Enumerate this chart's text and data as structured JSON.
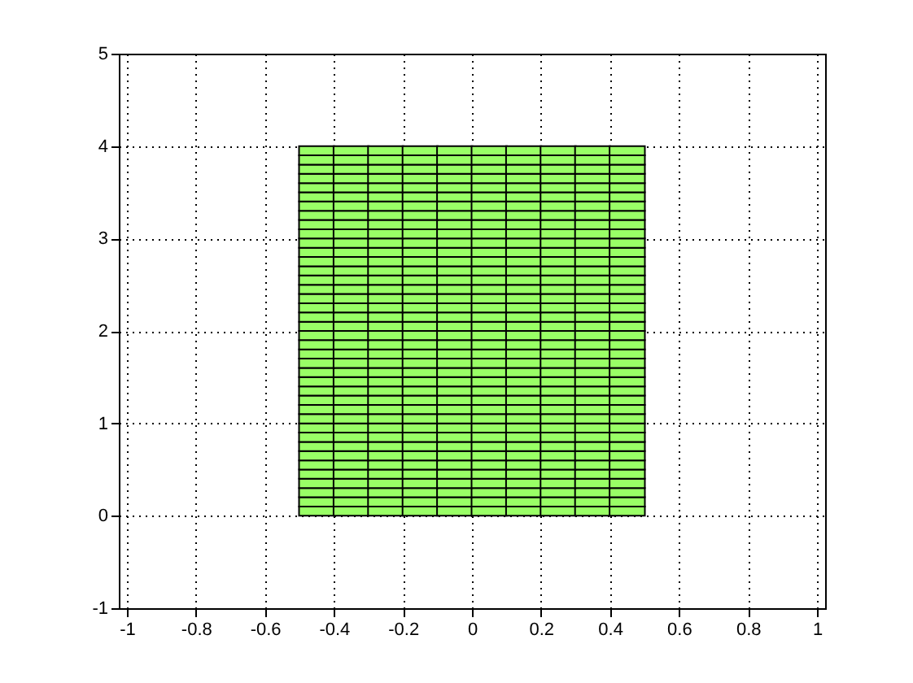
{
  "chart_data": {
    "type": "bar",
    "stacked": true,
    "x": [
      -0.45,
      -0.35,
      -0.25,
      -0.15,
      -0.05,
      0.05,
      0.15,
      0.25,
      0.35,
      0.45
    ],
    "xlim": [
      -1,
      1
    ],
    "xticks": [
      -1,
      -0.8,
      -0.6,
      -0.4,
      -0.2,
      0,
      0.2,
      0.4,
      0.6,
      0.8,
      1
    ],
    "ylim": [
      -1,
      5
    ],
    "yticks": [
      -1,
      0,
      1,
      2,
      3,
      4,
      5
    ],
    "grid": true,
    "series": [
      {
        "color": "#99ff66",
        "values": [
          0.1,
          0.1,
          0.1,
          0.1,
          0.1,
          0.1,
          0.1,
          0.1,
          0.1,
          0.1
        ]
      },
      {
        "color": "#99ff66",
        "values": [
          0.1,
          0.1,
          0.1,
          0.1,
          0.1,
          0.1,
          0.1,
          0.1,
          0.1,
          0.1
        ]
      },
      {
        "color": "#99ff66",
        "values": [
          0.1,
          0.1,
          0.1,
          0.1,
          0.1,
          0.1,
          0.1,
          0.1,
          0.1,
          0.1
        ]
      },
      {
        "color": "#99ff66",
        "values": [
          0.1,
          0.1,
          0.1,
          0.1,
          0.1,
          0.1,
          0.1,
          0.1,
          0.1,
          0.1
        ]
      },
      {
        "color": "#99ff66",
        "values": [
          0.1,
          0.1,
          0.1,
          0.1,
          0.1,
          0.1,
          0.1,
          0.1,
          0.1,
          0.1
        ]
      },
      {
        "color": "#99ff66",
        "values": [
          0.1,
          0.1,
          0.1,
          0.1,
          0.1,
          0.1,
          0.1,
          0.1,
          0.1,
          0.1
        ]
      },
      {
        "color": "#99ff66",
        "values": [
          0.1,
          0.1,
          0.1,
          0.1,
          0.1,
          0.1,
          0.1,
          0.1,
          0.1,
          0.1
        ]
      },
      {
        "color": "#99ff66",
        "values": [
          0.1,
          0.1,
          0.1,
          0.1,
          0.1,
          0.1,
          0.1,
          0.1,
          0.1,
          0.1
        ]
      },
      {
        "color": "#99ff66",
        "values": [
          0.1,
          0.1,
          0.1,
          0.1,
          0.1,
          0.1,
          0.1,
          0.1,
          0.1,
          0.1
        ]
      },
      {
        "color": "#99ff66",
        "values": [
          0.1,
          0.1,
          0.1,
          0.1,
          0.1,
          0.1,
          0.1,
          0.1,
          0.1,
          0.1
        ]
      },
      {
        "color": "#99ff66",
        "values": [
          0.1,
          0.1,
          0.1,
          0.1,
          0.1,
          0.1,
          0.1,
          0.1,
          0.1,
          0.1
        ]
      },
      {
        "color": "#99ff66",
        "values": [
          0.1,
          0.1,
          0.1,
          0.1,
          0.1,
          0.1,
          0.1,
          0.1,
          0.1,
          0.1
        ]
      },
      {
        "color": "#99ff66",
        "values": [
          0.1,
          0.1,
          0.1,
          0.1,
          0.1,
          0.1,
          0.1,
          0.1,
          0.1,
          0.1
        ]
      },
      {
        "color": "#99ff66",
        "values": [
          0.1,
          0.1,
          0.1,
          0.1,
          0.1,
          0.1,
          0.1,
          0.1,
          0.1,
          0.1
        ]
      },
      {
        "color": "#99ff66",
        "values": [
          0.1,
          0.1,
          0.1,
          0.1,
          0.1,
          0.1,
          0.1,
          0.1,
          0.1,
          0.1
        ]
      },
      {
        "color": "#99ff66",
        "values": [
          0.1,
          0.1,
          0.1,
          0.1,
          0.1,
          0.1,
          0.1,
          0.1,
          0.1,
          0.1
        ]
      },
      {
        "color": "#99ff66",
        "values": [
          0.1,
          0.1,
          0.1,
          0.1,
          0.1,
          0.1,
          0.1,
          0.1,
          0.1,
          0.1
        ]
      },
      {
        "color": "#99ff66",
        "values": [
          0.1,
          0.1,
          0.1,
          0.1,
          0.1,
          0.1,
          0.1,
          0.1,
          0.1,
          0.1
        ]
      },
      {
        "color": "#99ff66",
        "values": [
          0.1,
          0.1,
          0.1,
          0.1,
          0.1,
          0.1,
          0.1,
          0.1,
          0.1,
          0.1
        ]
      },
      {
        "color": "#99ff66",
        "values": [
          0.1,
          0.1,
          0.1,
          0.1,
          0.1,
          0.1,
          0.1,
          0.1,
          0.1,
          0.1
        ]
      },
      {
        "color": "#99ff66",
        "values": [
          0.1,
          0.1,
          0.1,
          0.1,
          0.1,
          0.1,
          0.1,
          0.1,
          0.1,
          0.1
        ]
      },
      {
        "color": "#99ff66",
        "values": [
          0.1,
          0.1,
          0.1,
          0.1,
          0.1,
          0.1,
          0.1,
          0.1,
          0.1,
          0.1
        ]
      },
      {
        "color": "#99ff66",
        "values": [
          0.1,
          0.1,
          0.1,
          0.1,
          0.1,
          0.1,
          0.1,
          0.1,
          0.1,
          0.1
        ]
      },
      {
        "color": "#99ff66",
        "values": [
          0.1,
          0.1,
          0.1,
          0.1,
          0.1,
          0.1,
          0.1,
          0.1,
          0.1,
          0.1
        ]
      },
      {
        "color": "#99ff66",
        "values": [
          0.1,
          0.1,
          0.1,
          0.1,
          0.1,
          0.1,
          0.1,
          0.1,
          0.1,
          0.1
        ]
      },
      {
        "color": "#99ff66",
        "values": [
          0.1,
          0.1,
          0.1,
          0.1,
          0.1,
          0.1,
          0.1,
          0.1,
          0.1,
          0.1
        ]
      },
      {
        "color": "#99ff66",
        "values": [
          0.1,
          0.1,
          0.1,
          0.1,
          0.1,
          0.1,
          0.1,
          0.1,
          0.1,
          0.1
        ]
      },
      {
        "color": "#99ff66",
        "values": [
          0.1,
          0.1,
          0.1,
          0.1,
          0.1,
          0.1,
          0.1,
          0.1,
          0.1,
          0.1
        ]
      },
      {
        "color": "#99ff66",
        "values": [
          0.1,
          0.1,
          0.1,
          0.1,
          0.1,
          0.1,
          0.1,
          0.1,
          0.1,
          0.1
        ]
      },
      {
        "color": "#99ff66",
        "values": [
          0.1,
          0.1,
          0.1,
          0.1,
          0.1,
          0.1,
          0.1,
          0.1,
          0.1,
          0.1
        ]
      },
      {
        "color": "#99ff66",
        "values": [
          0.1,
          0.1,
          0.1,
          0.1,
          0.1,
          0.1,
          0.1,
          0.1,
          0.1,
          0.1
        ]
      },
      {
        "color": "#99ff66",
        "values": [
          0.1,
          0.1,
          0.1,
          0.1,
          0.1,
          0.1,
          0.1,
          0.1,
          0.1,
          0.1
        ]
      },
      {
        "color": "#99ff66",
        "values": [
          0.1,
          0.1,
          0.1,
          0.1,
          0.1,
          0.1,
          0.1,
          0.1,
          0.1,
          0.1
        ]
      },
      {
        "color": "#99ff66",
        "values": [
          0.1,
          0.1,
          0.1,
          0.1,
          0.1,
          0.1,
          0.1,
          0.1,
          0.1,
          0.1
        ]
      },
      {
        "color": "#99ff66",
        "values": [
          0.1,
          0.1,
          0.1,
          0.1,
          0.1,
          0.1,
          0.1,
          0.1,
          0.1,
          0.1
        ]
      },
      {
        "color": "#99ff66",
        "values": [
          0.1,
          0.1,
          0.1,
          0.1,
          0.1,
          0.1,
          0.1,
          0.1,
          0.1,
          0.1
        ]
      },
      {
        "color": "#99ff66",
        "values": [
          0.1,
          0.1,
          0.1,
          0.1,
          0.1,
          0.1,
          0.1,
          0.1,
          0.1,
          0.1
        ]
      },
      {
        "color": "#99ff66",
        "values": [
          0.1,
          0.1,
          0.1,
          0.1,
          0.1,
          0.1,
          0.1,
          0.1,
          0.1,
          0.1
        ]
      },
      {
        "color": "#99ff66",
        "values": [
          0.1,
          0.1,
          0.1,
          0.1,
          0.1,
          0.1,
          0.1,
          0.1,
          0.1,
          0.1
        ]
      },
      {
        "color": "#99ff66",
        "values": [
          0.1,
          0.1,
          0.1,
          0.1,
          0.1,
          0.1,
          0.1,
          0.1,
          0.1,
          0.1
        ]
      }
    ]
  }
}
